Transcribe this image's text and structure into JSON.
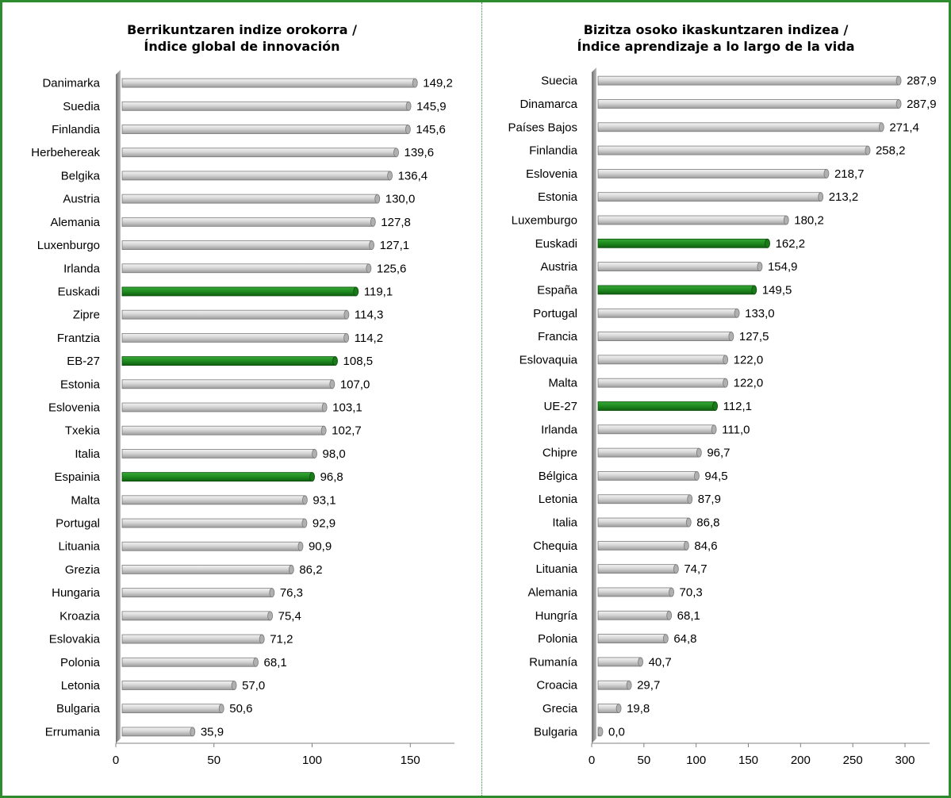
{
  "colors": {
    "frame": "#2e8b2e",
    "bar_default": "#c8c8c8",
    "bar_highlight": "#1f8a1f"
  },
  "chart_data": [
    {
      "type": "bar",
      "orientation": "horizontal",
      "title": "Berrikuntzaren indize orokorra /\nÍndice global de innovación",
      "xlim": [
        0,
        160
      ],
      "xticks": [
        "0",
        "50",
        "100",
        "150"
      ],
      "xtick_values": [
        0,
        50,
        100,
        150
      ],
      "grid": false,
      "legend": "none",
      "categories": [
        "Danimarka",
        "Suedia",
        "Finlandia",
        "Herbehereak",
        "Belgika",
        "Austria",
        "Alemania",
        "Luxenburgo",
        "Irlanda",
        "Euskadi",
        "Zipre",
        "Frantzia",
        "EB-27",
        "Estonia",
        "Eslovenia",
        "Txekia",
        "Italia",
        "Espainia",
        "Malta",
        "Portugal",
        "Lituania",
        "Grezia",
        "Hungaria",
        "Kroazia",
        "Eslovakia",
        "Polonia",
        "Letonia",
        "Bulgaria",
        "Errumania"
      ],
      "values": [
        149.2,
        145.9,
        145.6,
        139.6,
        136.4,
        130.0,
        127.8,
        127.1,
        125.6,
        119.1,
        114.3,
        114.2,
        108.5,
        107.0,
        103.1,
        102.7,
        98.0,
        96.8,
        93.1,
        92.9,
        90.9,
        86.2,
        76.3,
        75.4,
        71.2,
        68.1,
        57.0,
        50.6,
        35.9
      ],
      "value_labels": [
        "149,2",
        "145,9",
        "145,6",
        "139,6",
        "136,4",
        "130,0",
        "127,8",
        "127,1",
        "125,6",
        "119,1",
        "114,3",
        "114,2",
        "108,5",
        "107,0",
        "103,1",
        "102,7",
        "98,0",
        "96,8",
        "93,1",
        "92,9",
        "90,9",
        "86,2",
        "76,3",
        "75,4",
        "71,2",
        "68,1",
        "57,0",
        "50,6",
        "35,9"
      ],
      "highlighted": [
        "Euskadi",
        "EB-27",
        "Espainia"
      ]
    },
    {
      "type": "bar",
      "orientation": "horizontal",
      "title": "Bizitza osoko ikaskuntzaren indizea /\nÍndice aprendizaje a lo largo de la vida",
      "xlim": [
        0,
        300
      ],
      "xticks": [
        "0",
        "50",
        "100",
        "150",
        "200",
        "250",
        "300"
      ],
      "xtick_values": [
        0,
        50,
        100,
        150,
        200,
        250,
        300
      ],
      "grid": false,
      "legend": "none",
      "categories": [
        "Suecia",
        "Dinamarca",
        "Países Bajos",
        "Finlandia",
        "Eslovenia",
        "Estonia",
        "Luxemburgo",
        "Euskadi",
        "Austria",
        "España",
        "Portugal",
        "Francia",
        "Eslovaquia",
        "Malta",
        "UE-27",
        "Irlanda",
        "Chipre",
        "Bélgica",
        "Letonia",
        "Italia",
        "Chequia",
        "Lituania",
        "Alemania",
        "Hungría",
        "Polonia",
        "Rumanía",
        "Croacia",
        "Grecia",
        "Bulgaria"
      ],
      "values": [
        287.9,
        287.9,
        271.4,
        258.2,
        218.7,
        213.2,
        180.2,
        162.2,
        154.9,
        149.5,
        133.0,
        127.5,
        122.0,
        122.0,
        112.1,
        111.0,
        96.7,
        94.5,
        87.9,
        86.8,
        84.6,
        74.7,
        70.3,
        68.1,
        64.8,
        40.7,
        29.7,
        19.8,
        0.0
      ],
      "value_labels": [
        "287,9",
        "287,9",
        "271,4",
        "258,2",
        "218,7",
        "213,2",
        "180,2",
        "162,2",
        "154,9",
        "149,5",
        "133,0",
        "127,5",
        "122,0",
        "122,0",
        "112,1",
        "111,0",
        "96,7",
        "94,5",
        "87,9",
        "86,8",
        "84,6",
        "74,7",
        "70,3",
        "68,1",
        "64,8",
        "40,7",
        "29,7",
        "19,8",
        "0,0"
      ],
      "highlighted": [
        "Euskadi",
        "España",
        "UE-27"
      ]
    }
  ]
}
